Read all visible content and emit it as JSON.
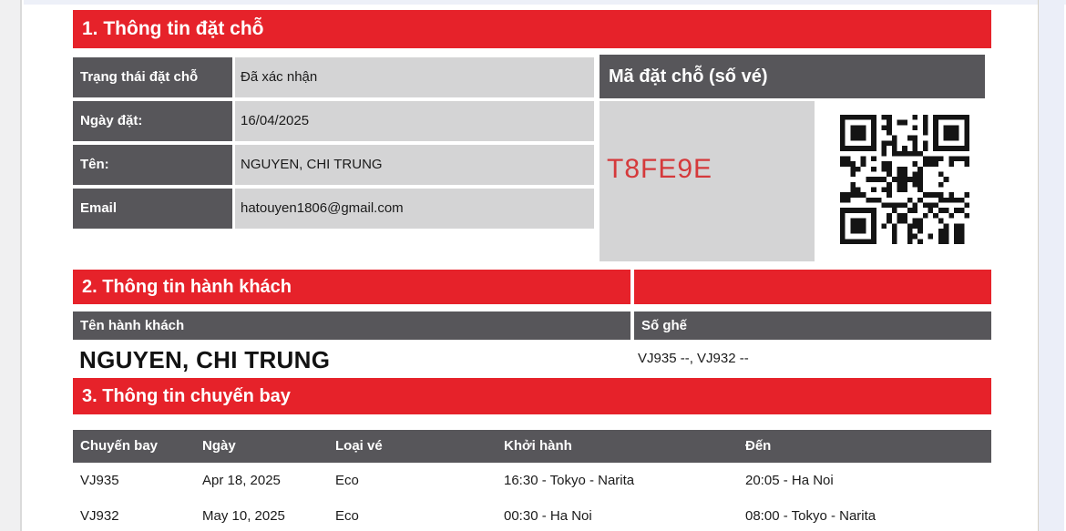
{
  "colors": {
    "red": "#e6222a",
    "dark": "#57565a",
    "light": "#d4d4d5",
    "code": "#d5393b"
  },
  "section1": {
    "title": "1. Thông tin đặt chỗ",
    "rows": [
      {
        "label": "Trạng thái đặt chỗ",
        "value": "Đã xác nhận"
      },
      {
        "label": "Ngày đặt:",
        "value": "16/04/2025"
      },
      {
        "label": "Tên:",
        "value": "NGUYEN, CHI TRUNG"
      },
      {
        "label": "Email",
        "value": "hatouyen1806@gmail.com"
      }
    ],
    "booking_code_header": "Mã đặt chỗ (số vé)",
    "booking_code": "T8FE9E"
  },
  "section2": {
    "title": "2. Thông tin hành khách",
    "name_header": "Tên hành khách",
    "seat_header": "Số ghế",
    "passenger_name": "NGUYEN, CHI TRUNG",
    "seats": "VJ935 --, VJ932 --"
  },
  "section3": {
    "title": "3. Thông tin chuyến bay",
    "columns": [
      "Chuyến bay",
      "Ngày",
      "Loại vé",
      "Khởi hành",
      "Đến"
    ],
    "flights": [
      {
        "flight": "VJ935",
        "date": "Apr 18, 2025",
        "fare": "Eco",
        "departure": "16:30 - Tokyo - Narita",
        "arrival": "20:05 - Ha Noi"
      },
      {
        "flight": "VJ932",
        "date": "May 10, 2025",
        "fare": "Eco",
        "departure": "00:30 - Ha Noi",
        "arrival": "08:00 - Tokyo - Narita"
      }
    ]
  }
}
